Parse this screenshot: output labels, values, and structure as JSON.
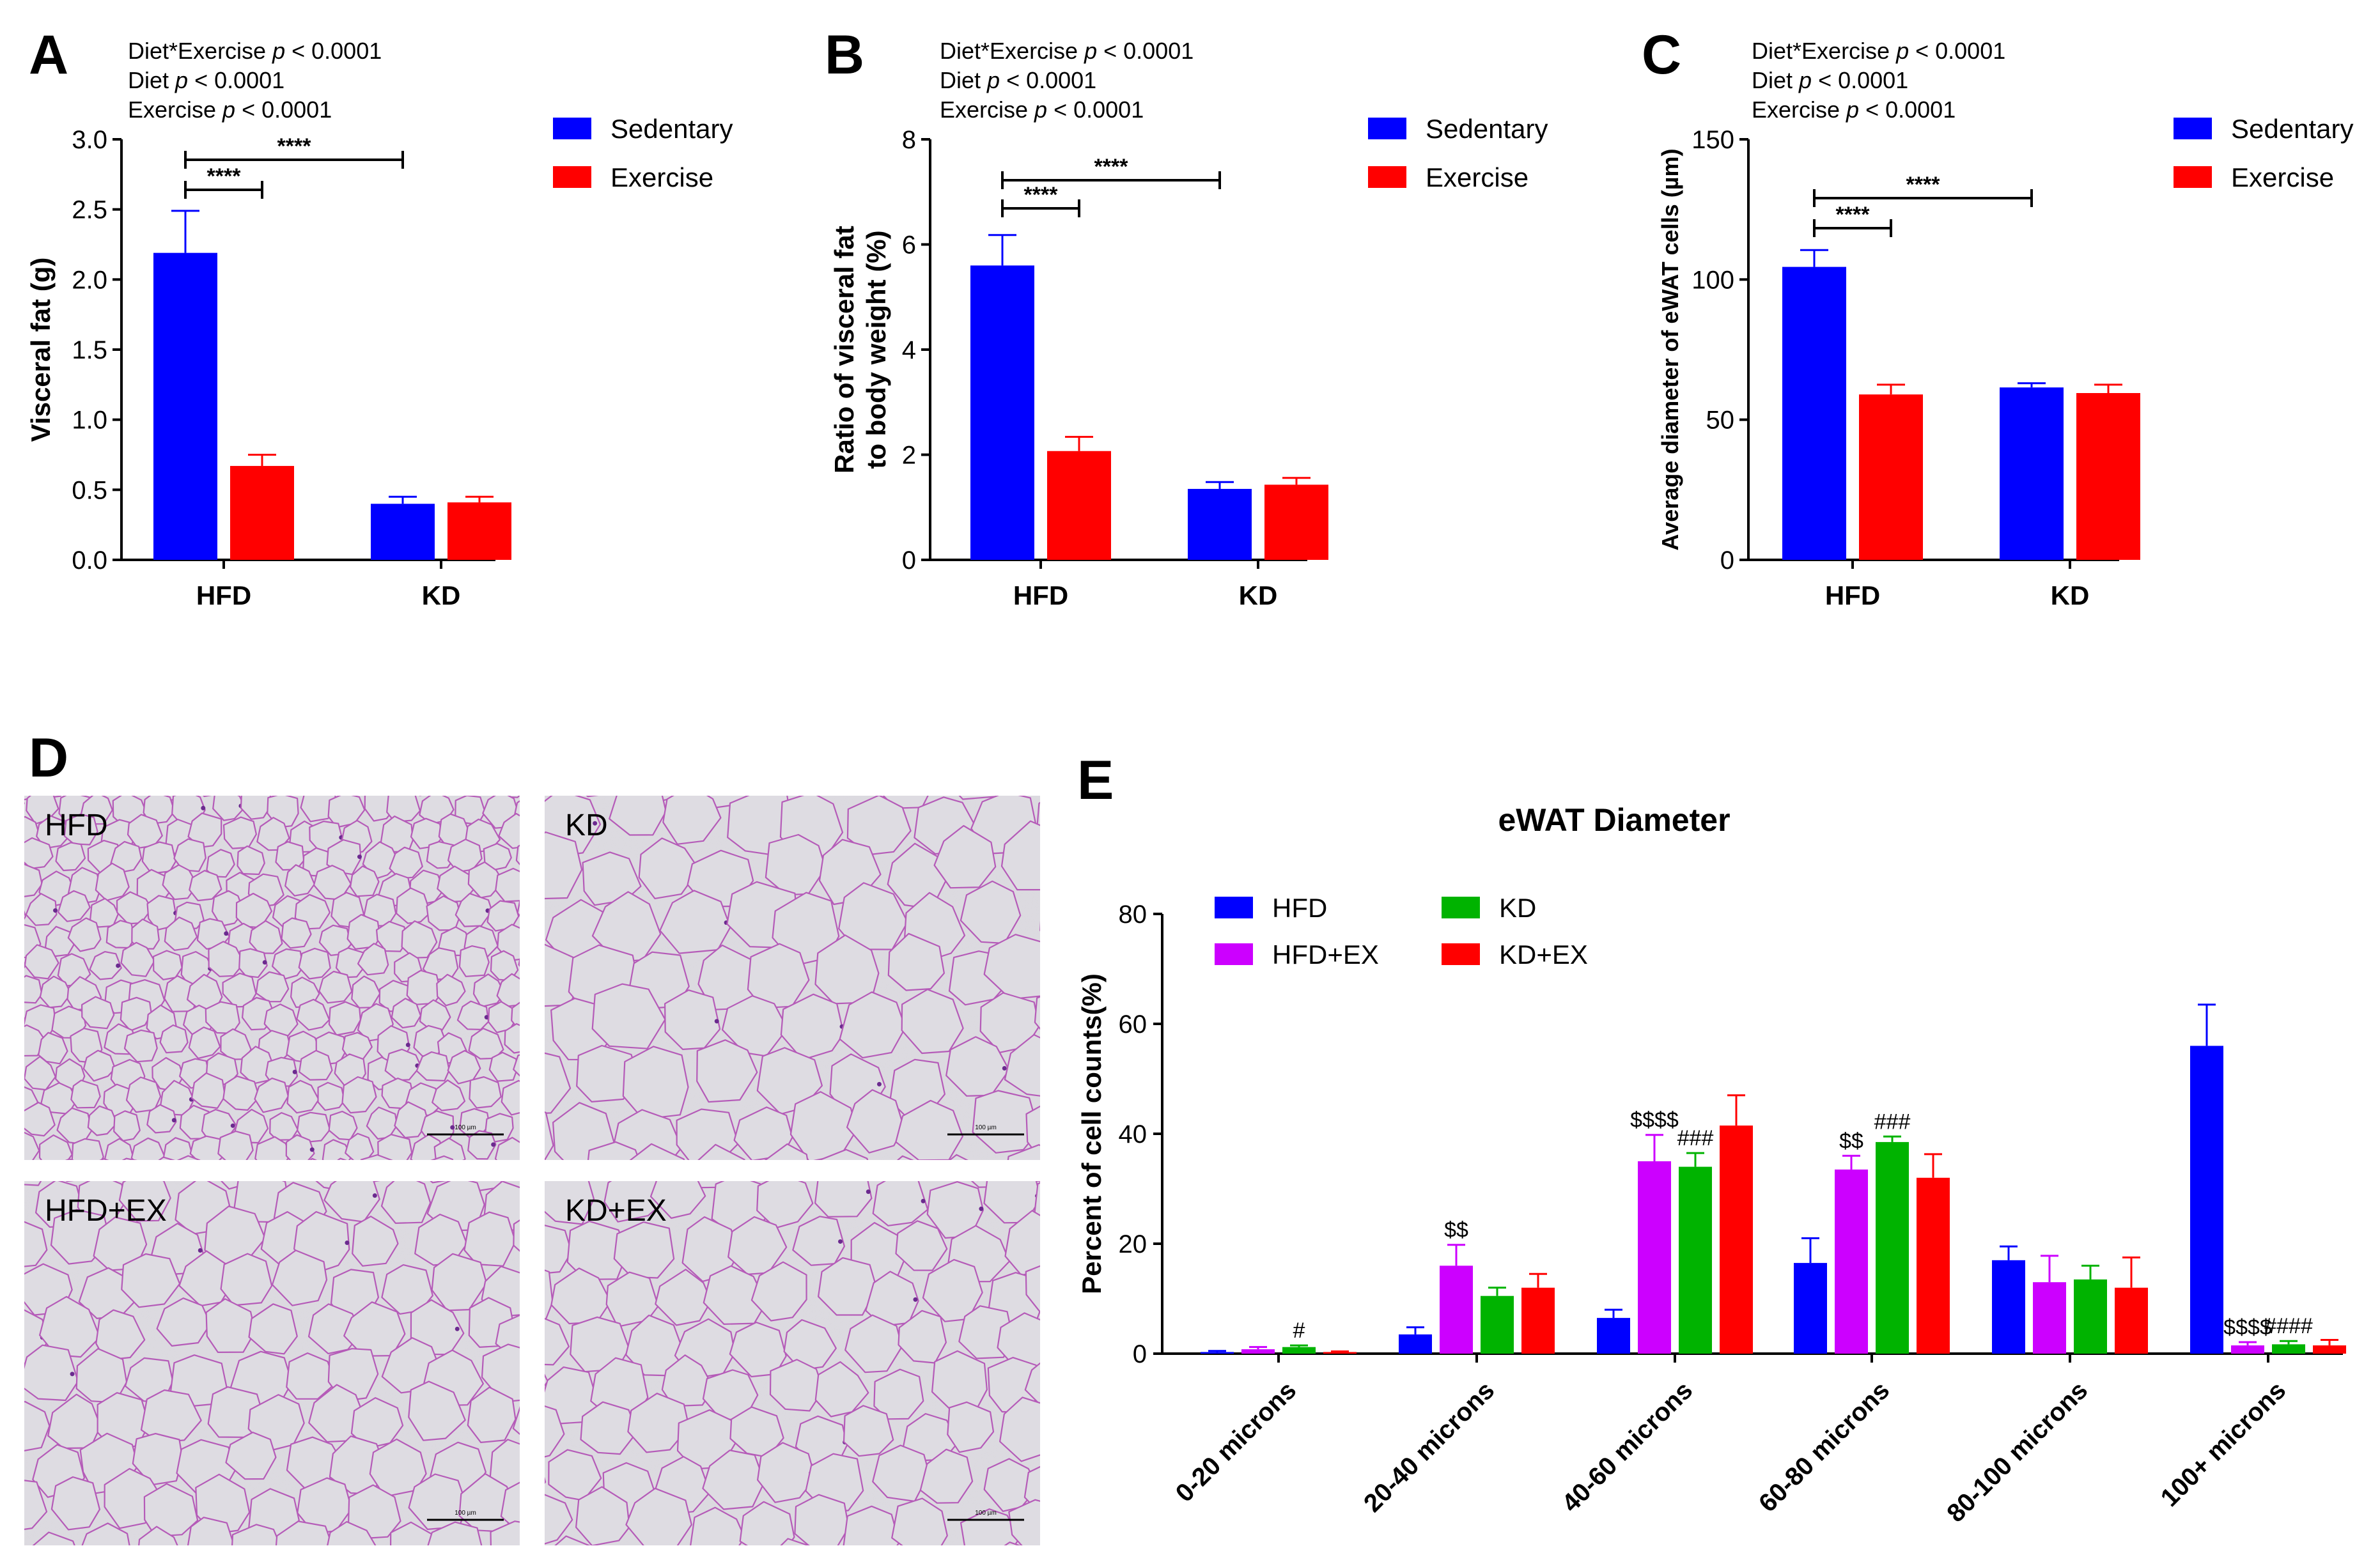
{
  "colors": {
    "sedentary": "#0000ff",
    "exercise": "#ff0000",
    "hfd": "#0000ff",
    "hfd_ex": "#cc00ff",
    "kd": "#00b300",
    "kd_ex": "#ff0000",
    "tissue_bg": "#dad8de",
    "membrane": "#b55bb8"
  },
  "panels": {
    "A": "A",
    "B": "B",
    "C": "C",
    "D": "D",
    "E": "E"
  },
  "histology": {
    "images": [
      {
        "label": "HFD",
        "scale": "100 µm"
      },
      {
        "label": "KD",
        "scale": "100 µm"
      },
      {
        "label": "HFD+EX",
        "scale": "100 µm"
      },
      {
        "label": "KD+EX",
        "scale": "100 µm"
      }
    ]
  },
  "chart_data": [
    {
      "panel": "A",
      "type": "bar",
      "stats": [
        {
          "prefix": "Diet*Exercise ",
          "p": "p",
          "suffix": " < 0.0001"
        },
        {
          "prefix": "Diet ",
          "p": "p",
          "suffix": " < 0.0001"
        },
        {
          "prefix": "Exercise ",
          "p": "p",
          "suffix": " < 0.0001"
        }
      ],
      "categories": [
        "HFD",
        "KD"
      ],
      "series": [
        {
          "name": "Sedentary",
          "values": [
            2.19,
            0.4
          ],
          "errors": [
            0.3,
            0.05
          ]
        },
        {
          "name": "Exercise",
          "values": [
            0.67,
            0.41
          ],
          "errors": [
            0.08,
            0.04
          ]
        }
      ],
      "ylabel": "Visceral fat (g)",
      "ylim": [
        0,
        3.0
      ],
      "yticks": [
        "0.0",
        "0.5",
        "1.0",
        "1.5",
        "2.0",
        "2.5",
        "3.0"
      ],
      "significance": [
        {
          "label": "****",
          "from": "HFD-Sedentary",
          "to": "HFD-Exercise"
        },
        {
          "label": "****",
          "from": "HFD-Sedentary",
          "to": "KD-Sedentary"
        }
      ]
    },
    {
      "panel": "B",
      "type": "bar",
      "stats": [
        {
          "prefix": "Diet*Exercise ",
          "p": "p",
          "suffix": " < 0.0001"
        },
        {
          "prefix": "Diet ",
          "p": "p",
          "suffix": " < 0.0001"
        },
        {
          "prefix": "Exercise ",
          "p": "p",
          "suffix": " < 0.0001"
        }
      ],
      "categories": [
        "HFD",
        "KD"
      ],
      "series": [
        {
          "name": "Sedentary",
          "values": [
            5.6,
            1.35
          ],
          "errors": [
            0.58,
            0.13
          ]
        },
        {
          "name": "Exercise",
          "values": [
            2.07,
            1.43
          ],
          "errors": [
            0.27,
            0.13
          ]
        }
      ],
      "ylabel_lines": [
        "Ratio of visceral fat",
        "to body weight (%)"
      ],
      "ylim": [
        0,
        8
      ],
      "yticks": [
        "0",
        "2",
        "4",
        "6",
        "8"
      ],
      "significance": [
        {
          "label": "****",
          "from": "HFD-Sedentary",
          "to": "HFD-Exercise"
        },
        {
          "label": "****",
          "from": "HFD-Sedentary",
          "to": "KD-Sedentary"
        }
      ]
    },
    {
      "panel": "C",
      "type": "bar",
      "stats": [
        {
          "prefix": "Diet*Exercise ",
          "p": "p",
          "suffix": " < 0.0001"
        },
        {
          "prefix": "Diet ",
          "p": "p",
          "suffix": " < 0.0001"
        },
        {
          "prefix": "Exercise ",
          "p": "p",
          "suffix": " < 0.0001"
        }
      ],
      "categories": [
        "HFD",
        "KD"
      ],
      "series": [
        {
          "name": "Sedentary",
          "values": [
            104.5,
            61.5
          ],
          "errors": [
            6,
            1.5
          ]
        },
        {
          "name": "Exercise",
          "values": [
            59,
            59.5
          ],
          "errors": [
            3.5,
            3
          ]
        }
      ],
      "ylabel": "Average diameter of eWAT cells (µm)",
      "ylim": [
        0,
        150
      ],
      "yticks": [
        "0",
        "50",
        "100",
        "150"
      ],
      "significance": [
        {
          "label": "****",
          "from": "HFD-Sedentary",
          "to": "HFD-Exercise"
        },
        {
          "label": "****",
          "from": "HFD-Sedentary",
          "to": "KD-Sedentary"
        }
      ]
    },
    {
      "panel": "E",
      "type": "bar",
      "title": "eWAT Diameter",
      "ylabel": "Percent of cell counts(%)",
      "ylim": [
        0,
        80
      ],
      "yticks": [
        "0",
        "20",
        "40",
        "60",
        "80"
      ],
      "categories": [
        "0-20 microns",
        "20-40 microns",
        "40-60 microns",
        "60-80 microns",
        "80-100 microns",
        "100+ microns"
      ],
      "series": [
        {
          "name": "HFD",
          "values": [
            0.3,
            3.5,
            6.5,
            16.5,
            17.0,
            56.0
          ],
          "errors": [
            0.2,
            1.3,
            1.5,
            4.5,
            2.5,
            7.5
          ]
        },
        {
          "name": "HFD+EX",
          "values": [
            0.8,
            16.0,
            35.0,
            33.5,
            13.0,
            1.5
          ],
          "errors": [
            0.4,
            3.8,
            4.8,
            2.5,
            4.8,
            0.6
          ]
        },
        {
          "name": "KD",
          "values": [
            1.2,
            10.5,
            34.0,
            38.5,
            13.5,
            1.7
          ],
          "errors": [
            0.3,
            1.5,
            2.5,
            1.0,
            2.5,
            0.6
          ]
        },
        {
          "name": "KD+EX",
          "values": [
            0.3,
            12.0,
            41.5,
            32.0,
            12.0,
            1.5
          ],
          "errors": [
            0.1,
            2.5,
            5.5,
            4.3,
            5.5,
            1.0
          ]
        }
      ],
      "annotations": [
        {
          "category": "0-20 microns",
          "series": "KD",
          "text": "#"
        },
        {
          "category": "20-40 microns",
          "series": "HFD+EX",
          "text": "$$"
        },
        {
          "category": "40-60 microns",
          "series": "HFD+EX",
          "text": "$$$$"
        },
        {
          "category": "40-60 microns",
          "series": "KD",
          "text": "###"
        },
        {
          "category": "60-80 microns",
          "series": "HFD+EX",
          "text": "$$"
        },
        {
          "category": "60-80 microns",
          "series": "KD",
          "text": "###"
        },
        {
          "category": "100+ microns",
          "series": "HFD+EX",
          "text": "$$$$"
        },
        {
          "category": "100+ microns",
          "series": "KD",
          "text": "####"
        }
      ]
    }
  ]
}
